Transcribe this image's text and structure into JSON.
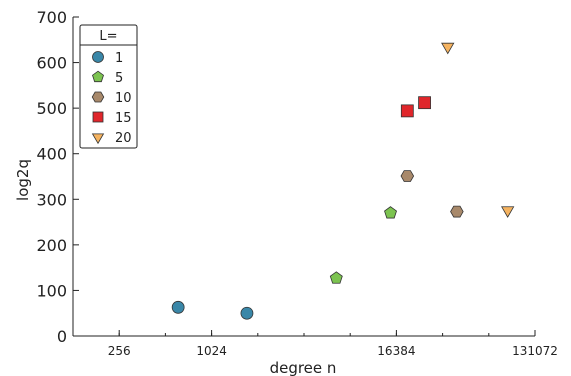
{
  "chart_data": {
    "type": "scatter",
    "title": "",
    "xlabel": "degree n",
    "ylabel": "log2q",
    "x_scale": "log2",
    "xlim": [
      128,
      131072
    ],
    "ylim": [
      0,
      700
    ],
    "x_ticks": [
      256,
      1024,
      16384,
      131072
    ],
    "x_tick_labels": [
      "256",
      "1024",
      "16384",
      "131072"
    ],
    "y_ticks": [
      0,
      100,
      200,
      300,
      400,
      500,
      600,
      700
    ],
    "y_tick_labels": [
      "0",
      "100",
      "200",
      "300",
      "400",
      "500",
      "600",
      "700"
    ],
    "grid": false,
    "legend": {
      "title": "L=",
      "position": "top-left"
    },
    "series": [
      {
        "name": "1",
        "marker": "circle",
        "color": "#3a87a8",
        "points": [
          {
            "x": 620,
            "y": 63
          },
          {
            "x": 1740,
            "y": 50
          }
        ]
      },
      {
        "name": "5",
        "marker": "pentagon",
        "color": "#7cc350",
        "points": [
          {
            "x": 6650,
            "y": 127
          },
          {
            "x": 15000,
            "y": 270
          }
        ]
      },
      {
        "name": "10",
        "marker": "hexagon",
        "color": "#a8896b",
        "points": [
          {
            "x": 19300,
            "y": 351
          },
          {
            "x": 40600,
            "y": 273
          }
        ]
      },
      {
        "name": "15",
        "marker": "square",
        "color": "#e0262b",
        "points": [
          {
            "x": 19300,
            "y": 494
          },
          {
            "x": 25000,
            "y": 512
          }
        ]
      },
      {
        "name": "20",
        "marker": "triangle",
        "color": "#f5b360",
        "points": [
          {
            "x": 35400,
            "y": 635
          },
          {
            "x": 87000,
            "y": 276
          }
        ]
      }
    ]
  }
}
